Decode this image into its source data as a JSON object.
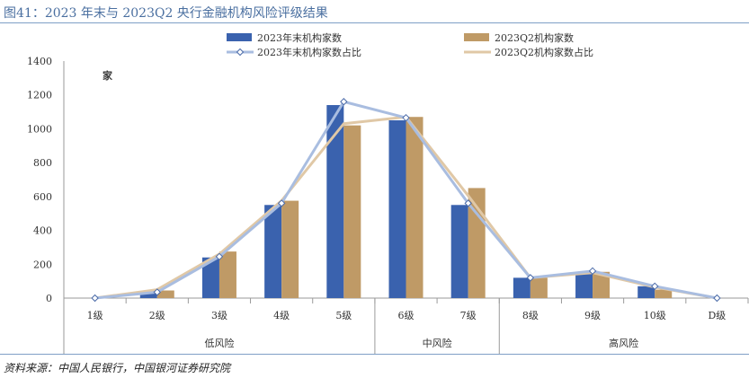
{
  "title": "图41：2023 年末与 2023Q2 央行金融机构风险评级结果",
  "source": "资料来源：中国人民银行，中国银河证券研究院",
  "chart_data": {
    "type": "bar",
    "ylabel": "家",
    "ylim": [
      0,
      1400
    ],
    "yticks": [
      "0",
      "200",
      "400",
      "600",
      "800",
      "1000",
      "1200",
      "1400"
    ],
    "ytick_values": [
      0,
      200,
      400,
      600,
      800,
      1000,
      1200,
      1400
    ],
    "categories": [
      "1级",
      "2级",
      "3级",
      "4级",
      "5级",
      "6级",
      "7级",
      "8级",
      "9级",
      "10级",
      "D级"
    ],
    "groups": [
      {
        "label": "低风险",
        "from": 0,
        "to": 4
      },
      {
        "label": "中风险",
        "from": 5,
        "to": 6
      },
      {
        "label": "高风险",
        "from": 7,
        "to": 10
      }
    ],
    "series": [
      {
        "name": "2023年末机构家数",
        "kind": "bar",
        "color": "#3a62ae",
        "values": [
          0,
          30,
          240,
          550,
          1140,
          1050,
          550,
          120,
          150,
          70,
          0
        ]
      },
      {
        "name": "2023Q2机构家数",
        "kind": "bar",
        "color": "#bf9a66",
        "values": [
          0,
          45,
          275,
          575,
          1020,
          1070,
          650,
          120,
          155,
          50,
          0
        ]
      },
      {
        "name": "2023年末机构家数占比",
        "kind": "line",
        "color": "#a9bde0",
        "marker": "diamond",
        "values": [
          0,
          35,
          245,
          560,
          1160,
          1065,
          560,
          120,
          160,
          70,
          0
        ]
      },
      {
        "name": "2023Q2机构家数占比",
        "kind": "line",
        "color": "#e0c8a6",
        "marker": "none",
        "values": [
          0,
          50,
          260,
          575,
          1030,
          1070,
          605,
          120,
          150,
          65,
          0
        ]
      }
    ]
  }
}
